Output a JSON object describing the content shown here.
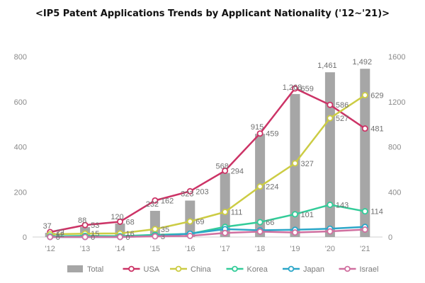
{
  "chart_data": {
    "type": "bar+line",
    "title": "<IP5 Patent Applications Trends by Applicant Nationality ('12~'21)>",
    "categories": [
      "'12",
      "'13",
      "'14",
      "'15",
      "'16",
      "'17",
      "'18",
      "'19",
      "'20",
      "'21"
    ],
    "ylim_left": [
      0,
      800
    ],
    "yticks_left": [
      "0",
      "200",
      "400",
      "600",
      "800"
    ],
    "ylim_right": [
      0,
      1600
    ],
    "yticks_right": [
      "0",
      "400",
      "800",
      "1200",
      "1600"
    ],
    "bars": {
      "name": "Total",
      "axis": "right",
      "color": "#a6a6a6",
      "values": [
        37,
        88,
        120,
        232,
        323,
        568,
        915,
        1268,
        1461,
        1492
      ],
      "labels": [
        "37",
        "88",
        "120",
        "232",
        "323",
        "568",
        "915",
        "1,268",
        "1,461",
        "1,492"
      ]
    },
    "series": [
      {
        "name": "USA",
        "axis": "left",
        "color": "#cc3366",
        "values": [
          22,
          53,
          68,
          162,
          203,
          294,
          459,
          659,
          586,
          481
        ],
        "labels": [
          "22",
          "53",
          "68",
          "162",
          "203",
          "294",
          "459",
          "659",
          "586",
          "481"
        ]
      },
      {
        "name": "China",
        "axis": "left",
        "color": "#cccc44",
        "values": [
          12,
          15,
          16,
          35,
          69,
          111,
          224,
          327,
          527,
          629
        ],
        "labels": [
          "12",
          "15",
          "16",
          "35",
          "69",
          "111",
          "224",
          "327",
          "527",
          "629"
        ]
      },
      {
        "name": "Korea",
        "axis": "left",
        "color": "#33cc99",
        "values": [
          3,
          5,
          4,
          10,
          14,
          45,
          66,
          101,
          143,
          114
        ],
        "labels": [
          "",
          "",
          "",
          "",
          "",
          "",
          "66",
          "101",
          "143",
          "114"
        ]
      },
      {
        "name": "Japan",
        "axis": "left",
        "color": "#2ba6c8",
        "values": [
          0,
          0,
          0,
          5,
          15,
          35,
          30,
          32,
          37,
          45
        ],
        "labels": [
          "0",
          "0",
          "0",
          "",
          "",
          "",
          "",
          "",
          "",
          ""
        ]
      },
      {
        "name": "Israel",
        "axis": "left",
        "color": "#d070a0",
        "values": [
          0,
          0,
          0,
          3,
          5,
          18,
          24,
          20,
          25,
          33
        ],
        "labels": [
          "",
          "",
          "",
          "3",
          "",
          "",
          "",
          "",
          "",
          ""
        ]
      }
    ],
    "legend_position": "bottom",
    "grid": false
  }
}
